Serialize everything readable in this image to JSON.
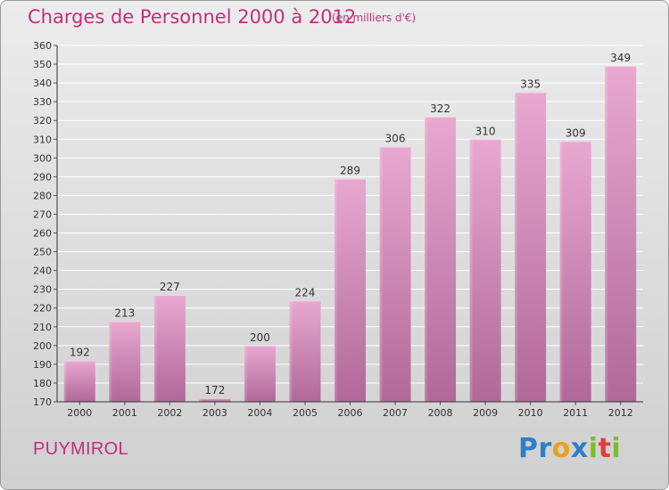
{
  "page": {
    "title": "Charges de Personnel 2000 à 2012",
    "subtitle": "(en milliers d'€)",
    "commune": "PUYMIROL",
    "logo": {
      "letters": [
        "P",
        "r",
        "o",
        "x",
        "i",
        "t",
        "i"
      ],
      "colors": [
        "#2f7fc8",
        "#2f7fc8",
        "#e9a11f",
        "#2f7fc8",
        "#7bbf2a",
        "#e23d3d",
        "#7bbf2a"
      ]
    }
  },
  "colors": {
    "title": "#c0307c",
    "bar_light": "#e8a8d0",
    "bar_dark": "#b06898",
    "grid": "#ffffff",
    "axis": "#333333"
  },
  "chart_data": {
    "type": "bar",
    "categories": [
      "2000",
      "2001",
      "2002",
      "2003",
      "2004",
      "2005",
      "2006",
      "2007",
      "2008",
      "2009",
      "2010",
      "2011",
      "2012"
    ],
    "values": [
      192,
      213,
      227,
      172,
      200,
      224,
      289,
      306,
      322,
      310,
      335,
      309,
      349
    ],
    "title": "Charges de Personnel 2000 à 2012",
    "xlabel": "",
    "ylabel": "",
    "ylim": [
      170,
      360
    ],
    "yticks": [
      170,
      180,
      190,
      200,
      210,
      220,
      230,
      240,
      250,
      260,
      270,
      280,
      290,
      300,
      310,
      320,
      330,
      340,
      350,
      360
    ],
    "grid": true,
    "data_labels": true
  }
}
